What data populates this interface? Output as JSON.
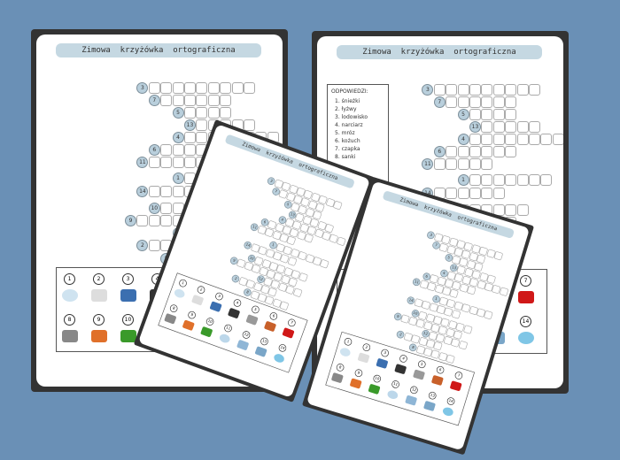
{
  "worksheet": {
    "title": "Zimowa  krzyżówka  ortograficzna",
    "clue_numbers": [
      "3",
      "7",
      "5",
      "13",
      "4",
      "6",
      "11",
      "1",
      "14",
      "10",
      "9",
      "12",
      "2",
      "8"
    ],
    "picture_numbers": [
      "1",
      "2",
      "3",
      "4",
      "5",
      "6",
      "7",
      "8",
      "9",
      "10",
      "11",
      "12",
      "13",
      "14"
    ],
    "picture_icons": [
      "snowball-icon",
      "skates-icon",
      "skaters-icon",
      "skier-icon",
      "snowflake-icon",
      "coat-icon",
      "hat-icon",
      "sled-icon",
      "sweater-icon",
      "gloves-icon",
      "snowflakes-icon",
      "ice-icon",
      "icicles-icon",
      "snow-cloud-icon"
    ]
  },
  "answer_key": {
    "heading": "ODPOWIEDZI:",
    "items": [
      "1. śnieżki",
      "2. łyżwy",
      "3. lodowisko",
      "4. narciarz",
      "5. mróz",
      "6. kożuch",
      "7. czapka",
      "8. sanki"
    ]
  },
  "colors": {
    "background": "#6a90b6",
    "title_bar": "#c5d8e2",
    "number_circle": "#b9cfdc",
    "frame": "#333333"
  }
}
